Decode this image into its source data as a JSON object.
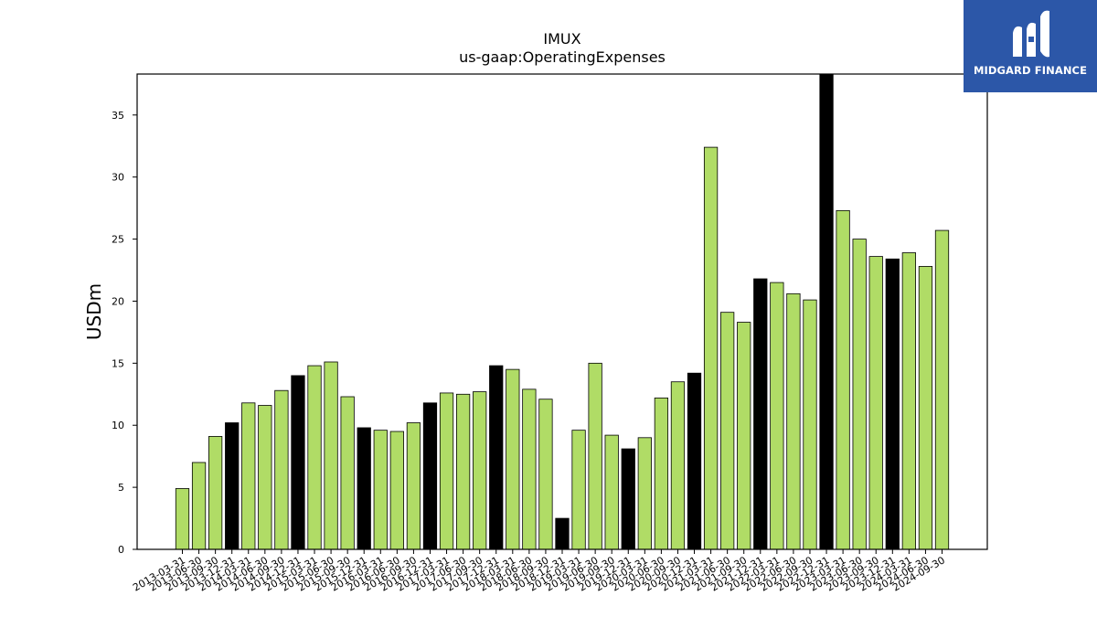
{
  "colors": {
    "bar_normal": "#b0dc66",
    "bar_highlight": "#000000",
    "logo_bg": "#2c57a8"
  },
  "logo": {
    "text": "MIDGARD FINANCE",
    "icon": "midgard-logo-icon"
  },
  "chart_data": {
    "type": "bar",
    "title": "IMUX",
    "subtitle": "us-gaap:OperatingExpenses",
    "xlabel": "",
    "ylabel": "USDm",
    "ylim": [
      0,
      38.3
    ],
    "yticks": [
      0,
      5,
      10,
      15,
      20,
      25,
      30,
      35
    ],
    "grid": false,
    "legend": null,
    "categories": [
      "2013-03-31",
      "2013-06-30",
      "2013-09-30",
      "2013-12-31",
      "2014-03-31",
      "2014-06-30",
      "2014-09-30",
      "2014-12-31",
      "2015-03-31",
      "2015-06-30",
      "2015-09-30",
      "2015-12-31",
      "2016-03-31",
      "2016-06-30",
      "2016-09-30",
      "2016-12-31",
      "2017-03-31",
      "2017-06-30",
      "2017-09-30",
      "2017-12-31",
      "2018-03-31",
      "2018-06-30",
      "2018-09-30",
      "2018-12-31",
      "2019-03-31",
      "2019-06-30",
      "2019-09-30",
      "2019-12-31",
      "2020-03-31",
      "2020-06-30",
      "2020-09-30",
      "2020-12-31",
      "2021-03-31",
      "2021-06-30",
      "2021-09-30",
      "2021-12-31",
      "2022-03-31",
      "2022-06-30",
      "2022-09-30",
      "2022-12-31",
      "2023-03-31",
      "2023-06-30",
      "2023-09-30",
      "2023-12-31",
      "2024-03-31",
      "2024-06-30",
      "2024-09-30"
    ],
    "values": [
      4.9,
      7.0,
      9.1,
      10.2,
      11.8,
      11.6,
      12.8,
      14.0,
      14.8,
      15.1,
      12.3,
      9.8,
      9.6,
      9.5,
      10.2,
      11.8,
      12.6,
      12.5,
      12.7,
      14.8,
      14.5,
      12.9,
      12.1,
      2.5,
      9.6,
      15.0,
      9.2,
      8.1,
      9.0,
      12.2,
      13.5,
      14.2,
      32.4,
      19.1,
      18.3,
      21.8,
      21.5,
      20.6,
      20.1,
      38.3,
      27.3,
      25.0,
      23.6,
      23.4,
      23.9,
      22.8,
      25.7
    ],
    "highlight_quarter": "12-31"
  }
}
